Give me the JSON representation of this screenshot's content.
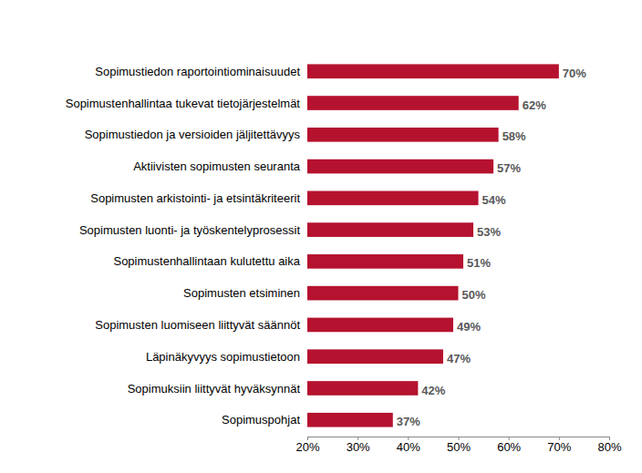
{
  "chart_data": {
    "type": "bar",
    "orientation": "horizontal",
    "categories": [
      "Sopimustiedon raportointiominaisuudet",
      "Sopimustenhallintaa tukevat tietojärjestelmät",
      "Sopimustiedon ja versioiden jäljitettävyys",
      "Aktiivisten sopimusten seuranta",
      "Sopimusten arkistointi- ja etsintäkriteerit",
      "Sopimusten luonti- ja työskentelyprosessit",
      "Sopimustenhallintaan kulutettu aika",
      "Sopimusten etsiminen",
      "Sopimusten luomiseen liittyvät säännöt",
      "Läpinäkyvyys sopimustietoon",
      "Sopimuksiin liittyvät hyväksynnät",
      "Sopimuspohjat"
    ],
    "values": [
      70,
      62,
      58,
      57,
      54,
      53,
      51,
      50,
      49,
      47,
      42,
      37
    ],
    "value_labels": [
      "70%",
      "62%",
      "58%",
      "57%",
      "54%",
      "53%",
      "51%",
      "50%",
      "49%",
      "47%",
      "42%",
      "37%"
    ],
    "color": "#b5122f",
    "xlim": [
      20,
      80
    ],
    "xticks": [
      {
        "value": 20,
        "label": "20%"
      },
      {
        "value": 30,
        "label": "30%"
      },
      {
        "value": 40,
        "label": "40%"
      },
      {
        "value": 50,
        "label": "50%"
      },
      {
        "value": 60,
        "label": "60%"
      },
      {
        "value": 70,
        "label": "70%"
      },
      {
        "value": 80,
        "label": "80%"
      }
    ],
    "grid": false,
    "data_labels": true
  }
}
